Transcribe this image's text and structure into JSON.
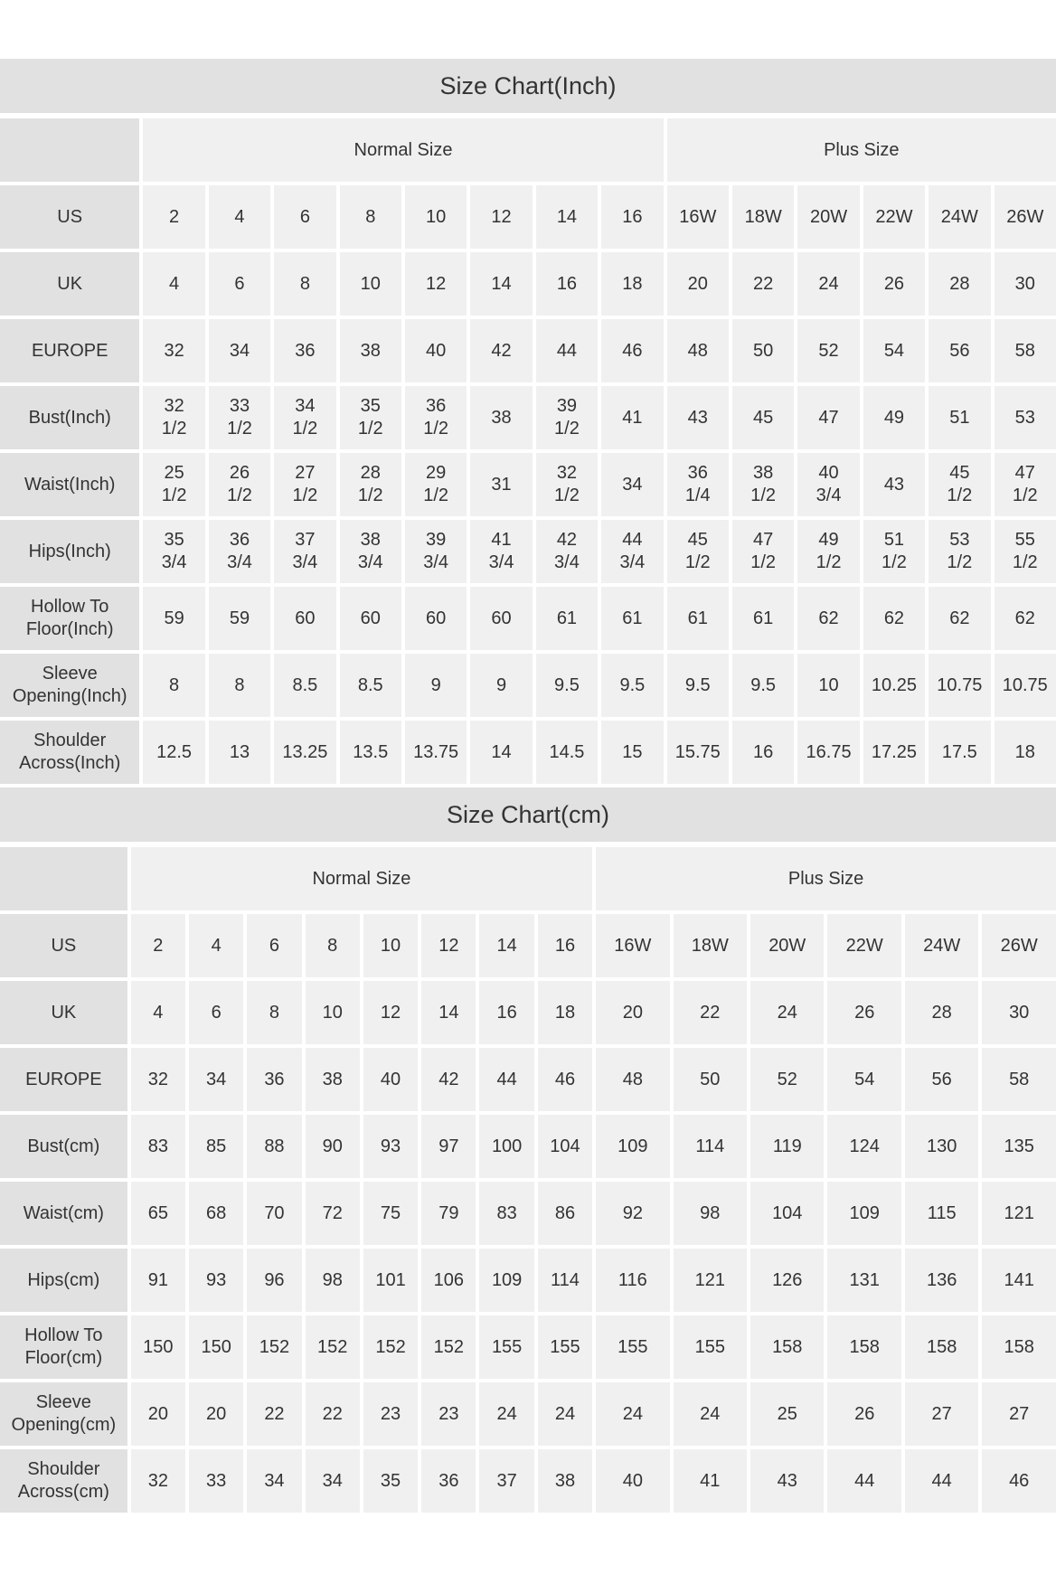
{
  "charts": [
    {
      "title": "Size Chart(Inch)",
      "groups": [
        "Normal Size",
        "Plus Size"
      ],
      "normal_count": 8,
      "rows": [
        {
          "label": "US",
          "values": [
            "2",
            "4",
            "6",
            "8",
            "10",
            "12",
            "14",
            "16",
            "16W",
            "18W",
            "20W",
            "22W",
            "24W",
            "26W"
          ]
        },
        {
          "label": "UK",
          "values": [
            "4",
            "6",
            "8",
            "10",
            "12",
            "14",
            "16",
            "18",
            "20",
            "22",
            "24",
            "26",
            "28",
            "30"
          ]
        },
        {
          "label": "EUROPE",
          "values": [
            "32",
            "34",
            "36",
            "38",
            "40",
            "42",
            "44",
            "46",
            "48",
            "50",
            "52",
            "54",
            "56",
            "58"
          ]
        },
        {
          "label": "Bust(Inch)",
          "values": [
            "32 1/2",
            "33 1/2",
            "34 1/2",
            "35 1/2",
            "36 1/2",
            "38",
            "39 1/2",
            "41",
            "43",
            "45",
            "47",
            "49",
            "51",
            "53"
          ]
        },
        {
          "label": "Waist(Inch)",
          "values": [
            "25 1/2",
            "26 1/2",
            "27 1/2",
            "28 1/2",
            "29 1/2",
            "31",
            "32 1/2",
            "34",
            "36 1/4",
            "38 1/2",
            "40 3/4",
            "43",
            "45 1/2",
            "47 1/2"
          ]
        },
        {
          "label": "Hips(Inch)",
          "values": [
            "35 3/4",
            "36 3/4",
            "37 3/4",
            "38 3/4",
            "39 3/4",
            "41 3/4",
            "42 3/4",
            "44 3/4",
            "45 1/2",
            "47 1/2",
            "49 1/2",
            "51 1/2",
            "53 1/2",
            "55 1/2"
          ]
        },
        {
          "label": "Hollow To Floor(Inch)",
          "values": [
            "59",
            "59",
            "60",
            "60",
            "60",
            "60",
            "61",
            "61",
            "61",
            "61",
            "62",
            "62",
            "62",
            "62"
          ]
        },
        {
          "label": "Sleeve Opening(Inch)",
          "values": [
            "8",
            "8",
            "8.5",
            "8.5",
            "9",
            "9",
            "9.5",
            "9.5",
            "9.5",
            "9.5",
            "10",
            "10.25",
            "10.75",
            "10.75"
          ]
        },
        {
          "label": "Shoulder Across(Inch)",
          "values": [
            "12.5",
            "13",
            "13.25",
            "13.5",
            "13.75",
            "14",
            "14.5",
            "15",
            "15.75",
            "16",
            "16.75",
            "17.25",
            "17.5",
            "18"
          ]
        }
      ]
    },
    {
      "title": "Size Chart(cm)",
      "groups": [
        "Normal Size",
        "Plus Size"
      ],
      "normal_count": 8,
      "rows": [
        {
          "label": "US",
          "values": [
            "2",
            "4",
            "6",
            "8",
            "10",
            "12",
            "14",
            "16",
            "16W",
            "18W",
            "20W",
            "22W",
            "24W",
            "26W"
          ]
        },
        {
          "label": "UK",
          "values": [
            "4",
            "6",
            "8",
            "10",
            "12",
            "14",
            "16",
            "18",
            "20",
            "22",
            "24",
            "26",
            "28",
            "30"
          ]
        },
        {
          "label": "EUROPE",
          "values": [
            "32",
            "34",
            "36",
            "38",
            "40",
            "42",
            "44",
            "46",
            "48",
            "50",
            "52",
            "54",
            "56",
            "58"
          ]
        },
        {
          "label": "Bust(cm)",
          "values": [
            "83",
            "85",
            "88",
            "90",
            "93",
            "97",
            "100",
            "104",
            "109",
            "114",
            "119",
            "124",
            "130",
            "135"
          ]
        },
        {
          "label": "Waist(cm)",
          "values": [
            "65",
            "68",
            "70",
            "72",
            "75",
            "79",
            "83",
            "86",
            "92",
            "98",
            "104",
            "109",
            "115",
            "121"
          ]
        },
        {
          "label": "Hips(cm)",
          "values": [
            "91",
            "93",
            "96",
            "98",
            "101",
            "106",
            "109",
            "114",
            "116",
            "121",
            "126",
            "131",
            "136",
            "141"
          ]
        },
        {
          "label": "Hollow To Floor(cm)",
          "values": [
            "150",
            "150",
            "152",
            "152",
            "152",
            "152",
            "155",
            "155",
            "155",
            "155",
            "158",
            "158",
            "158",
            "158"
          ]
        },
        {
          "label": "Sleeve Opening(cm)",
          "values": [
            "20",
            "20",
            "22",
            "22",
            "23",
            "23",
            "24",
            "24",
            "24",
            "24",
            "25",
            "26",
            "27",
            "27"
          ]
        },
        {
          "label": "Shoulder Across(cm)",
          "values": [
            "32",
            "33",
            "34",
            "34",
            "35",
            "36",
            "37",
            "38",
            "40",
            "41",
            "43",
            "44",
            "44",
            "46"
          ]
        }
      ]
    }
  ],
  "colors": {
    "title_bg": "#e1e1e1",
    "label_bg": "#e1e1e1",
    "cell_bg": "#f0f0f0",
    "text": "#333333"
  }
}
